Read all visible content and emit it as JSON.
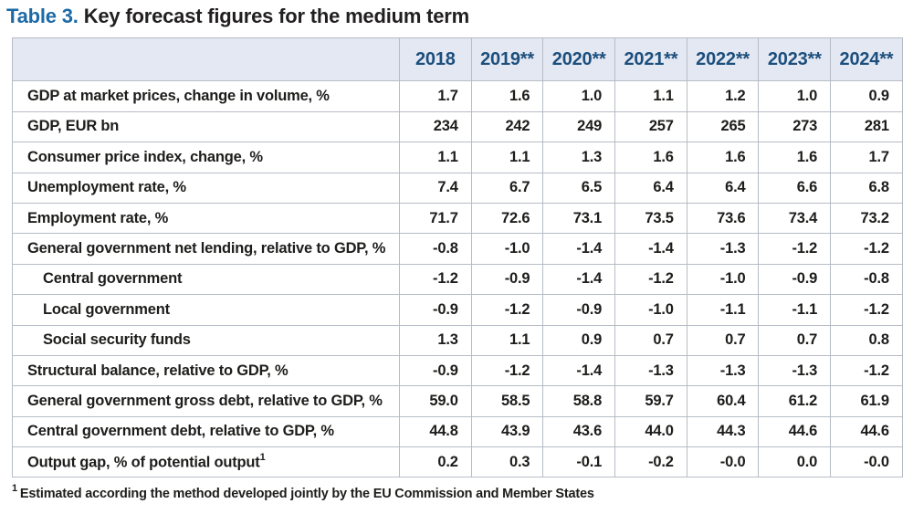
{
  "title": {
    "prefix": "Table 3.",
    "text": "Key forecast figures for the medium term"
  },
  "colors": {
    "title_accent_blue": "#1C6AA6",
    "header_text_blue": "#1C4F7D",
    "header_background": "#E4E8F2",
    "grid_border": "#B6BCC6",
    "body_text": "#1D1D1B"
  },
  "table": {
    "columns": [
      "2018",
      "2019**",
      "2020**",
      "2021**",
      "2022**",
      "2023**",
      "2024**"
    ],
    "rows": [
      {
        "label": "GDP at market prices, change in volume, %",
        "values": [
          "1.7",
          "1.6",
          "1.0",
          "1.1",
          "1.2",
          "1.0",
          "0.9"
        ]
      },
      {
        "label": "GDP, EUR bn",
        "values": [
          "234",
          "242",
          "249",
          "257",
          "265",
          "273",
          "281"
        ]
      },
      {
        "label": "Consumer price index, change, %",
        "values": [
          "1.1",
          "1.1",
          "1.3",
          "1.6",
          "1.6",
          "1.6",
          "1.7"
        ]
      },
      {
        "label": "Unemployment rate, %",
        "values": [
          "7.4",
          "6.7",
          "6.5",
          "6.4",
          "6.4",
          "6.6",
          "6.8"
        ]
      },
      {
        "label": "Employment rate, %",
        "values": [
          "71.7",
          "72.6",
          "73.1",
          "73.5",
          "73.6",
          "73.4",
          "73.2"
        ]
      },
      {
        "label": "General government net lending, relative to GDP, %",
        "values": [
          "-0.8",
          "-1.0",
          "-1.4",
          "-1.4",
          "-1.3",
          "-1.2",
          "-1.2"
        ]
      },
      {
        "label": "Central government",
        "values": [
          "-1.2",
          "-0.9",
          "-1.4",
          "-1.2",
          "-1.0",
          "-0.9",
          "-0.8"
        ]
      },
      {
        "label": "Local government",
        "values": [
          "-0.9",
          "-1.2",
          "-0.9",
          "-1.0",
          "-1.1",
          "-1.1",
          "-1.2"
        ]
      },
      {
        "label": "Social security funds",
        "values": [
          "1.3",
          "1.1",
          "0.9",
          "0.7",
          "0.7",
          "0.7",
          "0.8"
        ]
      },
      {
        "label": "Structural balance, relative to GDP, %",
        "values": [
          "-0.9",
          "-1.2",
          "-1.4",
          "-1.3",
          "-1.3",
          "-1.3",
          "-1.2"
        ]
      },
      {
        "label": "General government gross debt, relative to GDP, %",
        "values": [
          "59.0",
          "58.5",
          "58.8",
          "59.7",
          "60.4",
          "61.2",
          "61.9"
        ]
      },
      {
        "label": "Central government debt, relative to GDP, %",
        "values": [
          "44.8",
          "43.9",
          "43.6",
          "44.0",
          "44.3",
          "44.6",
          "44.6"
        ]
      },
      {
        "label": "Output gap, % of potential output",
        "sup": "1",
        "values": [
          "0.2",
          "0.3",
          "-0.1",
          "-0.2",
          "-0.0",
          "0.0",
          "-0.0"
        ]
      }
    ]
  },
  "footnote": {
    "marker": "1",
    "text": "Estimated according the method developed jointly by the EU Commission and Member States"
  }
}
